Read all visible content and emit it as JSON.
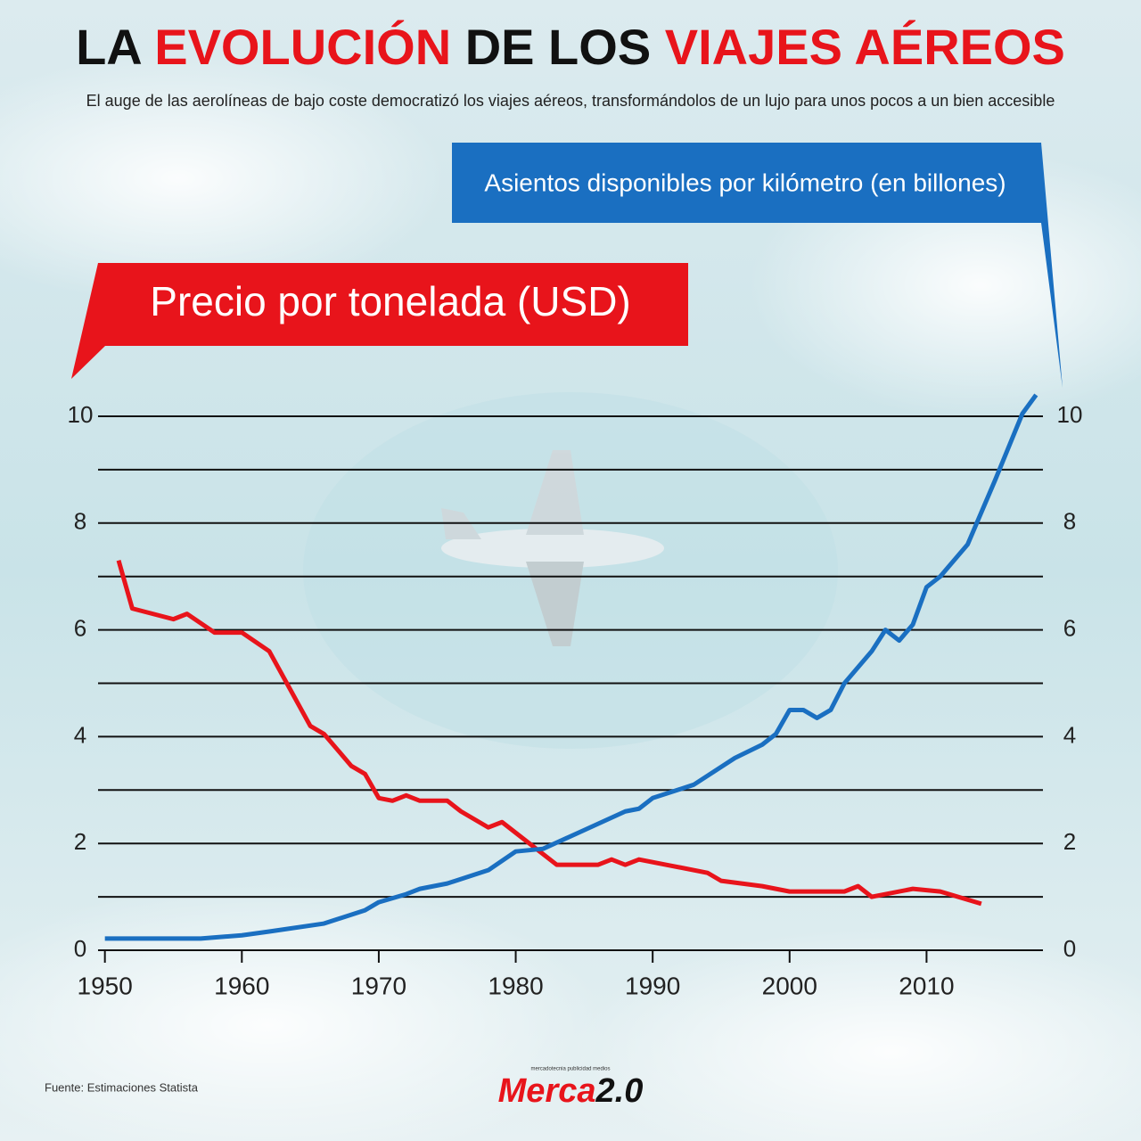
{
  "title_parts": [
    {
      "text": "LA ",
      "color": "#111111"
    },
    {
      "text": "EVOLUCIÓN",
      "color": "#e8141b"
    },
    {
      "text": " DE LOS ",
      "color": "#111111"
    },
    {
      "text": "VIAJES AÉREOS",
      "color": "#e8141b"
    }
  ],
  "subtitle": "El auge de las aerolíneas de bajo coste democratizó los viajes aéreos, transformándolos de un lujo para unos pocos a un bien accesible",
  "chart_data": {
    "type": "line",
    "xlim": [
      1949.5,
      2018.5
    ],
    "xticks": [
      1950,
      1960,
      1970,
      1980,
      1990,
      2000,
      2010
    ],
    "ylim": [
      0,
      10
    ],
    "yticks": [
      0,
      2,
      4,
      6,
      8,
      10
    ],
    "minor_yticks": [
      1,
      3,
      5,
      7,
      9
    ],
    "y2lim": [
      0,
      10
    ],
    "y2ticks": [
      0,
      2,
      4,
      6,
      8,
      10
    ],
    "grid": true,
    "series": [
      {
        "name": "Precio por tonelada (USD)",
        "color": "#e8141b",
        "axis": "y",
        "x": [
          1951,
          1952,
          1955,
          1956,
          1958,
          1960,
          1962,
          1965,
          1966,
          1968,
          1969,
          1970,
          1971,
          1972,
          1973,
          1975,
          1976,
          1978,
          1979,
          1980,
          1983,
          1986,
          1987,
          1988,
          1989,
          1991,
          1994,
          1995,
          1998,
          2000,
          2004,
          2005,
          2006,
          2009,
          2011,
          2014
        ],
        "values": [
          7.3,
          6.4,
          6.2,
          6.3,
          5.95,
          5.95,
          5.6,
          4.2,
          4.05,
          3.45,
          3.3,
          2.85,
          2.8,
          2.9,
          2.8,
          2.8,
          2.6,
          2.3,
          2.4,
          2.2,
          1.6,
          1.6,
          1.7,
          1.6,
          1.7,
          1.6,
          1.45,
          1.3,
          1.2,
          1.1,
          1.1,
          1.2,
          1.0,
          1.15,
          1.1,
          0.87
        ]
      },
      {
        "name": "Asientos disponibles por kilómetro (en billones)",
        "color": "#1a6fc1",
        "axis": "y2",
        "x": [
          1950,
          1957,
          1960,
          1962,
          1966,
          1969,
          1970,
          1972,
          1973,
          1975,
          1978,
          1980,
          1982,
          1985,
          1988,
          1989,
          1990,
          1993,
          1996,
          1998,
          1999,
          2000,
          2001,
          2002,
          2003,
          2004,
          2006,
          2007,
          2008,
          2009,
          2010,
          2011,
          2013,
          2015,
          2017,
          2018
        ],
        "values": [
          0.22,
          0.22,
          0.28,
          0.35,
          0.5,
          0.75,
          0.9,
          1.05,
          1.15,
          1.25,
          1.5,
          1.85,
          1.9,
          2.25,
          2.6,
          2.65,
          2.85,
          3.1,
          3.6,
          3.85,
          4.05,
          4.5,
          4.5,
          4.35,
          4.5,
          5.0,
          5.6,
          6.0,
          5.8,
          6.1,
          6.8,
          7.0,
          7.6,
          8.8,
          10.05,
          10.4
        ]
      }
    ]
  },
  "source": "Fuente: Estimaciones Statista",
  "logo": {
    "tagline": "mercadotecnia publicidad medios",
    "parts": [
      {
        "text": "Merca",
        "color": "#e8141b"
      },
      {
        "text": "2.0",
        "color": "#111111"
      }
    ]
  }
}
